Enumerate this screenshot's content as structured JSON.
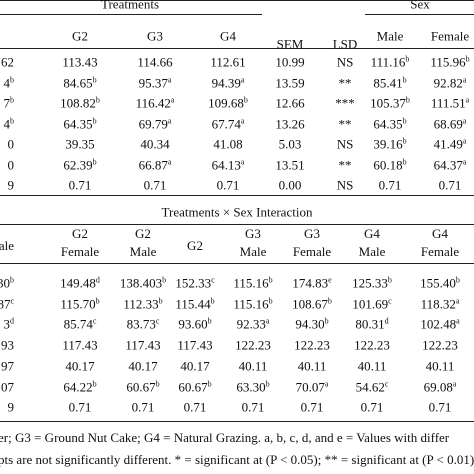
{
  "table1": {
    "group_headers": [
      "Treatments",
      "SEM",
      "LSD",
      "Sex"
    ],
    "headers": [
      "G2",
      "G3",
      "G4",
      "Male",
      "Female"
    ],
    "rows": [
      [
        "62",
        "113.43",
        "114.66",
        "112.61",
        "10.99",
        "NS",
        {
          "text": "111.16",
          "sup": "b"
        },
        {
          "text": "115.96",
          "sup": "b"
        }
      ],
      [
        {
          "text": "4",
          "sup": "b"
        },
        {
          "text": "84.65",
          "sup": "b"
        },
        {
          "text": "95.37",
          "sup": "a"
        },
        {
          "text": "94.39",
          "sup": "a"
        },
        "13.59",
        "**",
        {
          "text": "85.41",
          "sup": "b"
        },
        {
          "text": "92.82",
          "sup": "a"
        }
      ],
      [
        {
          "text": "7",
          "sup": "b"
        },
        {
          "text": "108.82",
          "sup": "b"
        },
        {
          "text": "116.42",
          "sup": "a"
        },
        {
          "text": "109.68",
          "sup": "b"
        },
        "12.66",
        "***",
        {
          "text": "105.37",
          "sup": "b"
        },
        {
          "text": "111.51",
          "sup": "a"
        }
      ],
      [
        {
          "text": "4",
          "sup": "b"
        },
        {
          "text": "64.35",
          "sup": "b"
        },
        {
          "text": "69.79",
          "sup": "a"
        },
        {
          "text": "67.74",
          "sup": "a"
        },
        "13.26",
        "**",
        {
          "text": "64.35",
          "sup": "b"
        },
        {
          "text": "68.69",
          "sup": "a"
        }
      ],
      [
        "0",
        "39.35",
        "40.34",
        "41.08",
        "5.03",
        "NS",
        {
          "text": "39.16",
          "sup": "b"
        },
        {
          "text": "41.49",
          "sup": "a"
        }
      ],
      [
        "0",
        {
          "text": "62.39",
          "sup": "b"
        },
        {
          "text": "66.87",
          "sup": "a"
        },
        {
          "text": "64.13",
          "sup": "a"
        },
        "13.51",
        "**",
        {
          "text": "60.18",
          "sup": "b"
        },
        {
          "text": "64.37",
          "sup": "a"
        }
      ],
      [
        "9",
        "0.71",
        "0.71",
        "0.71",
        "0.00",
        "NS",
        "0.71",
        "0.71"
      ]
    ]
  },
  "table2": {
    "title": "Treatments × Sex Interaction",
    "headers": [
      [
        "ale"
      ],
      [
        "G2",
        "Female"
      ],
      [
        "G2",
        "Male"
      ],
      [
        "G2"
      ],
      [
        "G3",
        "Male"
      ],
      [
        "G3",
        "Female"
      ],
      [
        "G4",
        "Male"
      ],
      [
        "G4",
        "Female"
      ]
    ],
    "rows": [
      [
        {
          "text": "30",
          "sup": "b"
        },
        {
          "text": "149.48",
          "sup": "d"
        },
        {
          "text": "138.403",
          "sup": "b"
        },
        {
          "text": "152.33",
          "sup": "c"
        },
        {
          "text": "115.16",
          "sup": "b"
        },
        {
          "text": "174.83",
          "sup": "e"
        },
        {
          "text": "125.33",
          "sup": "b"
        },
        {
          "text": "155.40",
          "sup": "b"
        }
      ],
      [
        {
          "text": "87",
          "sup": "c"
        },
        {
          "text": "115.70",
          "sup": "b"
        },
        {
          "text": "112.33",
          "sup": "b"
        },
        {
          "text": "115.44",
          "sup": "b"
        },
        {
          "text": "115.16",
          "sup": "b"
        },
        {
          "text": "108.67",
          "sup": "b"
        },
        {
          "text": "101.69",
          "sup": "c"
        },
        {
          "text": "118.32",
          "sup": "a"
        }
      ],
      [
        {
          "text": "3",
          "sup": "d"
        },
        {
          "text": "85.74",
          "sup": "c"
        },
        {
          "text": "83.73",
          "sup": "c"
        },
        {
          "text": "93.60",
          "sup": "b"
        },
        {
          "text": "92.33",
          "sup": "a"
        },
        {
          "text": "94.30",
          "sup": "b"
        },
        {
          "text": "80.31",
          "sup": "d"
        },
        {
          "text": "102.48",
          "sup": "a"
        }
      ],
      [
        "93",
        "117.43",
        "117.43",
        "117.43",
        "122.23",
        "122.23",
        "122.23",
        "122.23"
      ],
      [
        "97",
        "40.17",
        "40.17",
        "40.17",
        "40.11",
        "40.11",
        "40.11",
        "40.11"
      ],
      [
        "07",
        {
          "text": "64.22",
          "sup": "b"
        },
        {
          "text": "60.67",
          "sup": "b"
        },
        {
          "text": "60.67",
          "sup": "b"
        },
        {
          "text": "63.30",
          "sup": "b"
        },
        {
          "text": "70.07",
          "sup": "a"
        },
        {
          "text": "54.62",
          "sup": "c"
        },
        {
          "text": "69.08",
          "sup": "a"
        }
      ],
      [
        "9",
        "0.71",
        "0.71",
        "0.71",
        "0.71",
        "0.71",
        "0.71",
        "0.71"
      ]
    ]
  },
  "footnote": [
    "er; G3 = Ground Nut Cake; G4 = Natural Grazing. a, b, c, d, and e = Values with differ",
    "pts are not significantly different. * = significant at (P < 0.05); ** = significant at (P < 0.01)."
  ]
}
